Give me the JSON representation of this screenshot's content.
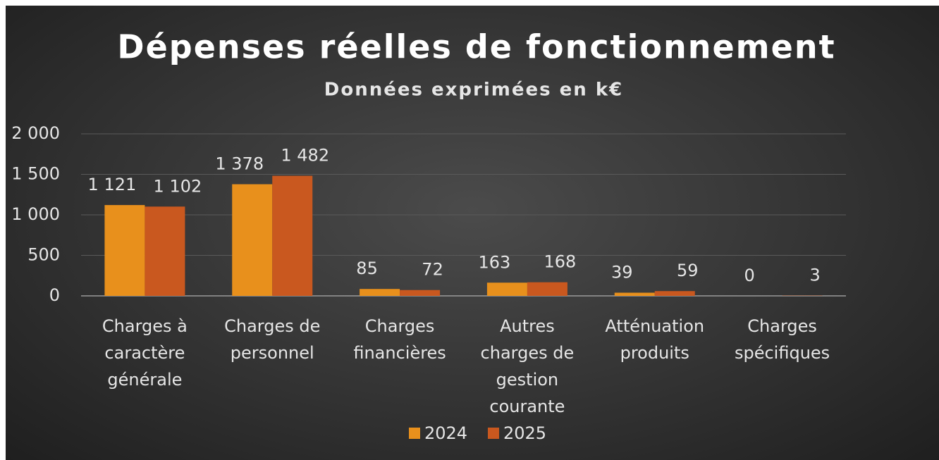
{
  "chart_data": {
    "type": "bar",
    "title": "Dépenses réelles de fonctionnement",
    "subtitle": "Données exprimées en k€",
    "categories": [
      "Charges à caractère générale",
      "Charges de personnel",
      "Charges financières",
      "Autres charges de gestion courante",
      "Atténuation produits",
      "Charges spécifiques"
    ],
    "series": [
      {
        "name": "2024",
        "color": "#e8901c",
        "values": [
          1121,
          1378,
          85,
          163,
          39,
          0
        ],
        "value_labels": [
          "1 121",
          "1 378",
          "85",
          "163",
          "39",
          "0"
        ]
      },
      {
        "name": "2025",
        "color": "#c9581f",
        "values": [
          1102,
          1482,
          72,
          168,
          59,
          3
        ],
        "value_labels": [
          "1 102",
          "1 482",
          "72",
          "168",
          "59",
          "3"
        ]
      }
    ],
    "ylim": [
      0,
      2000
    ],
    "yticks": [
      0,
      500,
      {
        "value": 1000,
        "label": "1 000"
      },
      {
        "value": 1500,
        "label": "1 500"
      },
      {
        "value": 2000,
        "label": "2 000"
      }
    ],
    "grid": true,
    "legend": "bottom"
  }
}
